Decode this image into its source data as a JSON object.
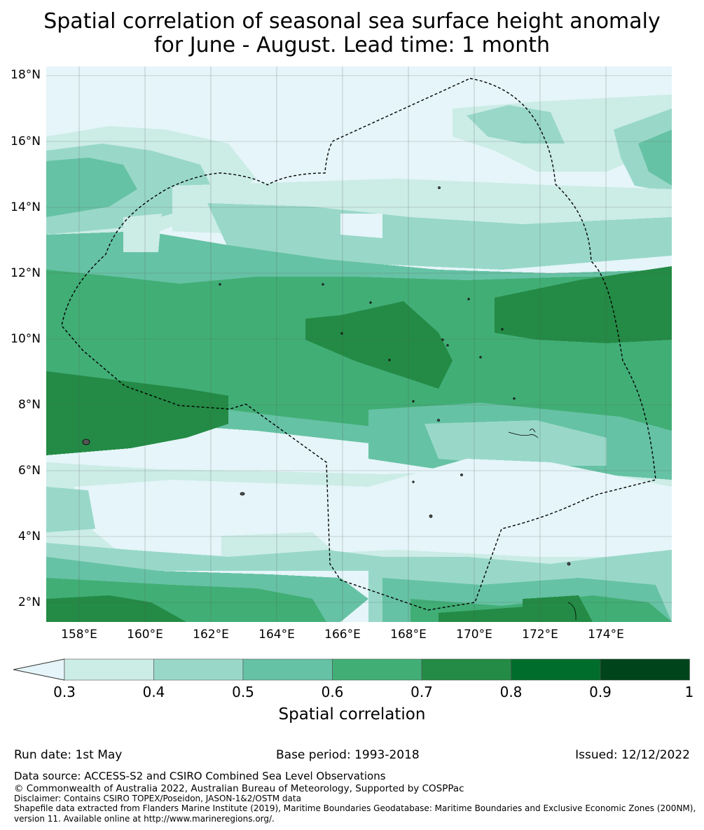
{
  "title_line1": "Spatial correlation of seasonal sea surface height anomaly",
  "title_line2": "for June - August. Lead time: 1 month",
  "lat_labels": [
    "18°N",
    "16°N",
    "14°N",
    "12°N",
    "10°N",
    "8°N",
    "6°N",
    "4°N",
    "2°N"
  ],
  "lon_labels": [
    "158°E",
    "160°E",
    "162°E",
    "164°E",
    "166°E",
    "168°E",
    "170°E",
    "172°E",
    "174°E"
  ],
  "colorbar": {
    "ticks": [
      "0.3",
      "0.4",
      "0.5",
      "0.6",
      "0.7",
      "0.8",
      "0.9",
      "1"
    ],
    "colors": [
      "#e5f5f9",
      "#ccece6",
      "#99d8c9",
      "#66c2a4",
      "#41ae76",
      "#238b45",
      "#006d2c",
      "#00441b"
    ],
    "extend": "min",
    "label": "Spatial correlation"
  },
  "run_date": "Run date: 1st May",
  "base_period": "Base period: 1993-2018",
  "issued": "Issued: 12/12/2022",
  "data_source": "Data source: ACCESS-S2 and CSIRO Combined Sea Level Observations",
  "copyright": "© Commonwealth of Australia 2022, Australian Bureau of Meteorology, Supported by COSPPac",
  "disclaimer": "Disclaimer: Contains CSIRO TOPEX/Poseidon, JASON-1&2/OSTM data",
  "shapefile_line1": "Shapefile data extracted from Flanders Marine Institute (2019), Maritime Boundaries Geodatabase: Maritime Boundaries and Exclusive Economic Zones (200NM),",
  "shapefile_line2": "version 11. Available online at http://www.marineregions.org/.",
  "map_extent": {
    "lon_min": 157,
    "lon_max": 176,
    "lat_min": 1.4,
    "lat_max": 18.3
  },
  "correlation_field": {
    "lat_bands": [
      {
        "lat_top": 18.3,
        "lat_bottom": 16.5,
        "value": "<0.3"
      },
      {
        "lat_top": 16.5,
        "lat_bottom": 14.3,
        "value": "0.3-0.5"
      },
      {
        "lat_top": 14.3,
        "lat_bottom": 12.3,
        "value": "0.3-0.5"
      },
      {
        "lat_top": 12.3,
        "lat_bottom": 9.5,
        "value": "0.5-0.7"
      },
      {
        "lat_top": 9.5,
        "lat_bottom": 7.2,
        "value": "0.6-0.8"
      },
      {
        "lat_top": 7.2,
        "lat_bottom": 5.8,
        "value": "0.5-0.7"
      },
      {
        "lat_top": 5.8,
        "lat_bottom": 3.5,
        "value": "<0.4"
      },
      {
        "lat_top": 3.5,
        "lat_bottom": 1.4,
        "value": "0.5-0.8"
      }
    ]
  }
}
